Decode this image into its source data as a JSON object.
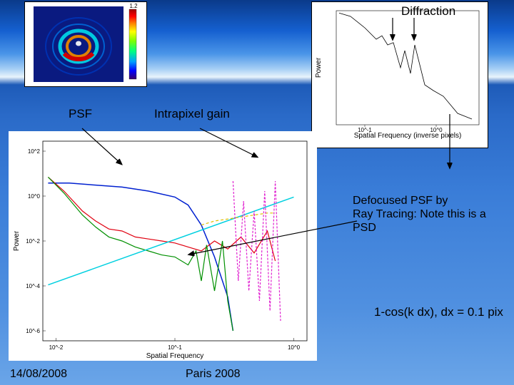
{
  "labels": {
    "diffraction": "Diffraction",
    "psf": "PSF",
    "intrapixel": "Intrapixel gain",
    "defocused_note_l1": "Defocused PSF by",
    "defocused_note_l2": "Ray Tracing: Note this is a",
    "defocused_note_l3": "PSD",
    "jitter": "1-cos(k dx),  dx = 0.1 pix"
  },
  "footer": {
    "date": "14/08/2008",
    "venue": "Paris 2008"
  },
  "psf_image": {
    "type": "heatmap",
    "bg_color": "#0a1a80",
    "ring_colors": [
      "#00a0e0",
      "#00d050",
      "#ffd000",
      "#ff6000",
      "#c00000"
    ],
    "colorbar_colors": [
      "#3a006a",
      "#0000ff",
      "#00a0ff",
      "#00ff80",
      "#80ff00",
      "#ffff00",
      "#ff8000",
      "#ff0000",
      "#a00000"
    ],
    "colorbar_label": "1.2"
  },
  "diffraction_chart": {
    "type": "line",
    "xlabel": "Spatial Frequency (inverse pixels)",
    "ylabel": "Power",
    "xticks": [
      "10^-1",
      "10^0"
    ],
    "xtick_pos": [
      0.2,
      0.7
    ],
    "yticks": [
      "",
      "",
      "",
      ""
    ],
    "line_color": "#000000",
    "bg": "#ffffff",
    "points_x": [
      0.02,
      0.1,
      0.2,
      0.28,
      0.32,
      0.36,
      0.4,
      0.45,
      0.48,
      0.52,
      0.55,
      0.58,
      0.62,
      0.68,
      0.75,
      0.85,
      0.95
    ],
    "points_y": [
      0.02,
      0.05,
      0.15,
      0.25,
      0.22,
      0.3,
      0.28,
      0.5,
      0.35,
      0.55,
      0.3,
      0.45,
      0.65,
      0.7,
      0.75,
      0.9,
      0.95
    ]
  },
  "main_chart": {
    "type": "loglog",
    "xlabel": "Spatial Frequency",
    "ylabel": "Power",
    "bg": "#ffffff",
    "xlog_ticks": [
      "10^-2",
      "10^-1",
      "10^0"
    ],
    "xlog_pos": [
      0.05,
      0.5,
      0.95
    ],
    "ylog_ticks": [
      "10^-6",
      "10^-4",
      "10^-2",
      "10^0",
      "10^2"
    ],
    "ylog_pos": [
      0.95,
      0.725,
      0.5,
      0.275,
      0.05
    ],
    "series": [
      {
        "name": "psf",
        "color": "#0020d0",
        "width": 1.5,
        "points_x": [
          0.02,
          0.1,
          0.2,
          0.3,
          0.4,
          0.5,
          0.55,
          0.6,
          0.65,
          0.7,
          0.72
        ],
        "points_y": [
          0.21,
          0.21,
          0.22,
          0.23,
          0.25,
          0.28,
          0.32,
          0.42,
          0.58,
          0.78,
          0.95
        ]
      },
      {
        "name": "red",
        "color": "#e00010",
        "width": 1.2,
        "points_x": [
          0.02,
          0.08,
          0.15,
          0.2,
          0.25,
          0.3,
          0.35,
          0.4,
          0.45,
          0.5,
          0.55,
          0.6,
          0.65,
          0.7,
          0.75,
          0.8,
          0.85,
          0.88
        ],
        "points_y": [
          0.18,
          0.25,
          0.35,
          0.4,
          0.44,
          0.45,
          0.48,
          0.49,
          0.5,
          0.51,
          0.53,
          0.55,
          0.5,
          0.54,
          0.48,
          0.56,
          0.45,
          0.6
        ]
      },
      {
        "name": "green",
        "color": "#009000",
        "width": 1.2,
        "points_x": [
          0.02,
          0.08,
          0.15,
          0.2,
          0.25,
          0.3,
          0.35,
          0.4,
          0.45,
          0.5,
          0.55,
          0.58,
          0.6,
          0.62,
          0.65,
          0.68,
          0.7,
          0.72
        ],
        "points_y": [
          0.18,
          0.26,
          0.37,
          0.43,
          0.48,
          0.5,
          0.53,
          0.55,
          0.57,
          0.58,
          0.62,
          0.55,
          0.7,
          0.52,
          0.75,
          0.5,
          0.8,
          0.95
        ]
      },
      {
        "name": "cyan",
        "color": "#00d0e0",
        "width": 1.5,
        "points_x": [
          0.02,
          0.95
        ],
        "points_y": [
          0.72,
          0.28
        ]
      },
      {
        "name": "yellow-dash",
        "color": "#e0c000",
        "width": 1.2,
        "dash": "4,3",
        "points_x": [
          0.6,
          0.65,
          0.7,
          0.75,
          0.8,
          0.85,
          0.88
        ],
        "points_y": [
          0.42,
          0.4,
          0.39,
          0.38,
          0.37,
          0.36,
          0.36
        ]
      },
      {
        "name": "magenta-dash",
        "color": "#e020d0",
        "width": 1.2,
        "dash": "3,2",
        "points_x": [
          0.72,
          0.74,
          0.76,
          0.78,
          0.8,
          0.82,
          0.84,
          0.86,
          0.88,
          0.9
        ],
        "points_y": [
          0.2,
          0.7,
          0.3,
          0.75,
          0.35,
          0.8,
          0.25,
          0.85,
          0.2,
          0.9
        ]
      }
    ]
  },
  "arrows": [
    {
      "from": [
        550,
        25
      ],
      "to": [
        550,
        55
      ]
    },
    {
      "from": [
        580,
        25
      ],
      "to": [
        580,
        55
      ]
    },
    {
      "from": [
        115,
        180
      ],
      "to": [
        170,
        230
      ]
    },
    {
      "from": [
        280,
        180
      ],
      "to": [
        360,
        220
      ]
    },
    {
      "from": [
        630,
        160
      ],
      "to": [
        630,
        235
      ]
    },
    {
      "from": [
        500,
        310
      ],
      "to": [
        265,
        357
      ]
    }
  ],
  "colors": {
    "text": "#000000",
    "border": "#000000"
  }
}
